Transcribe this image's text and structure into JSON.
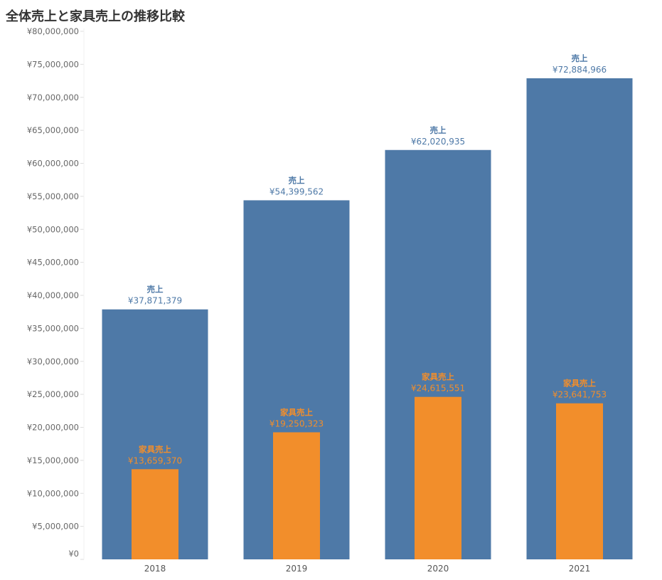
{
  "title": "全体売上と家具売上の推移比較",
  "chart_data": {
    "type": "bar",
    "title": "全体売上と家具売上の推移比較",
    "categories": [
      "2018",
      "2019",
      "2020",
      "2021"
    ],
    "series": [
      {
        "name": "売上",
        "color": "#4e79a7",
        "values": [
          37871379,
          54399562,
          62020935,
          72884966
        ],
        "labels": [
          "¥37,871,379",
          "¥54,399,562",
          "¥62,020,935",
          "¥72,884,966"
        ]
      },
      {
        "name": "家具売上",
        "color": "#f28e2b",
        "values": [
          13659370,
          19250323,
          24615551,
          23641753
        ],
        "labels": [
          "¥13,659,370",
          "¥19,250,323",
          "¥24,615,551",
          "¥23,641,753"
        ]
      }
    ],
    "ylim": [
      0,
      80000000
    ],
    "yticks": [
      0,
      5000000,
      10000000,
      15000000,
      20000000,
      25000000,
      30000000,
      35000000,
      40000000,
      45000000,
      50000000,
      55000000,
      60000000,
      65000000,
      70000000,
      75000000,
      80000000
    ],
    "ytick_labels": [
      "¥0",
      "¥5,000,000",
      "¥10,000,000",
      "¥15,000,000",
      "¥20,000,000",
      "¥25,000,000",
      "¥30,000,000",
      "¥35,000,000",
      "¥40,000,000",
      "¥45,000,000",
      "¥50,000,000",
      "¥55,000,000",
      "¥60,000,000",
      "¥65,000,000",
      "¥70,000,000",
      "¥75,000,000",
      "¥80,000,000"
    ],
    "grid": false,
    "overlay": true,
    "xlabel": "",
    "ylabel": ""
  }
}
